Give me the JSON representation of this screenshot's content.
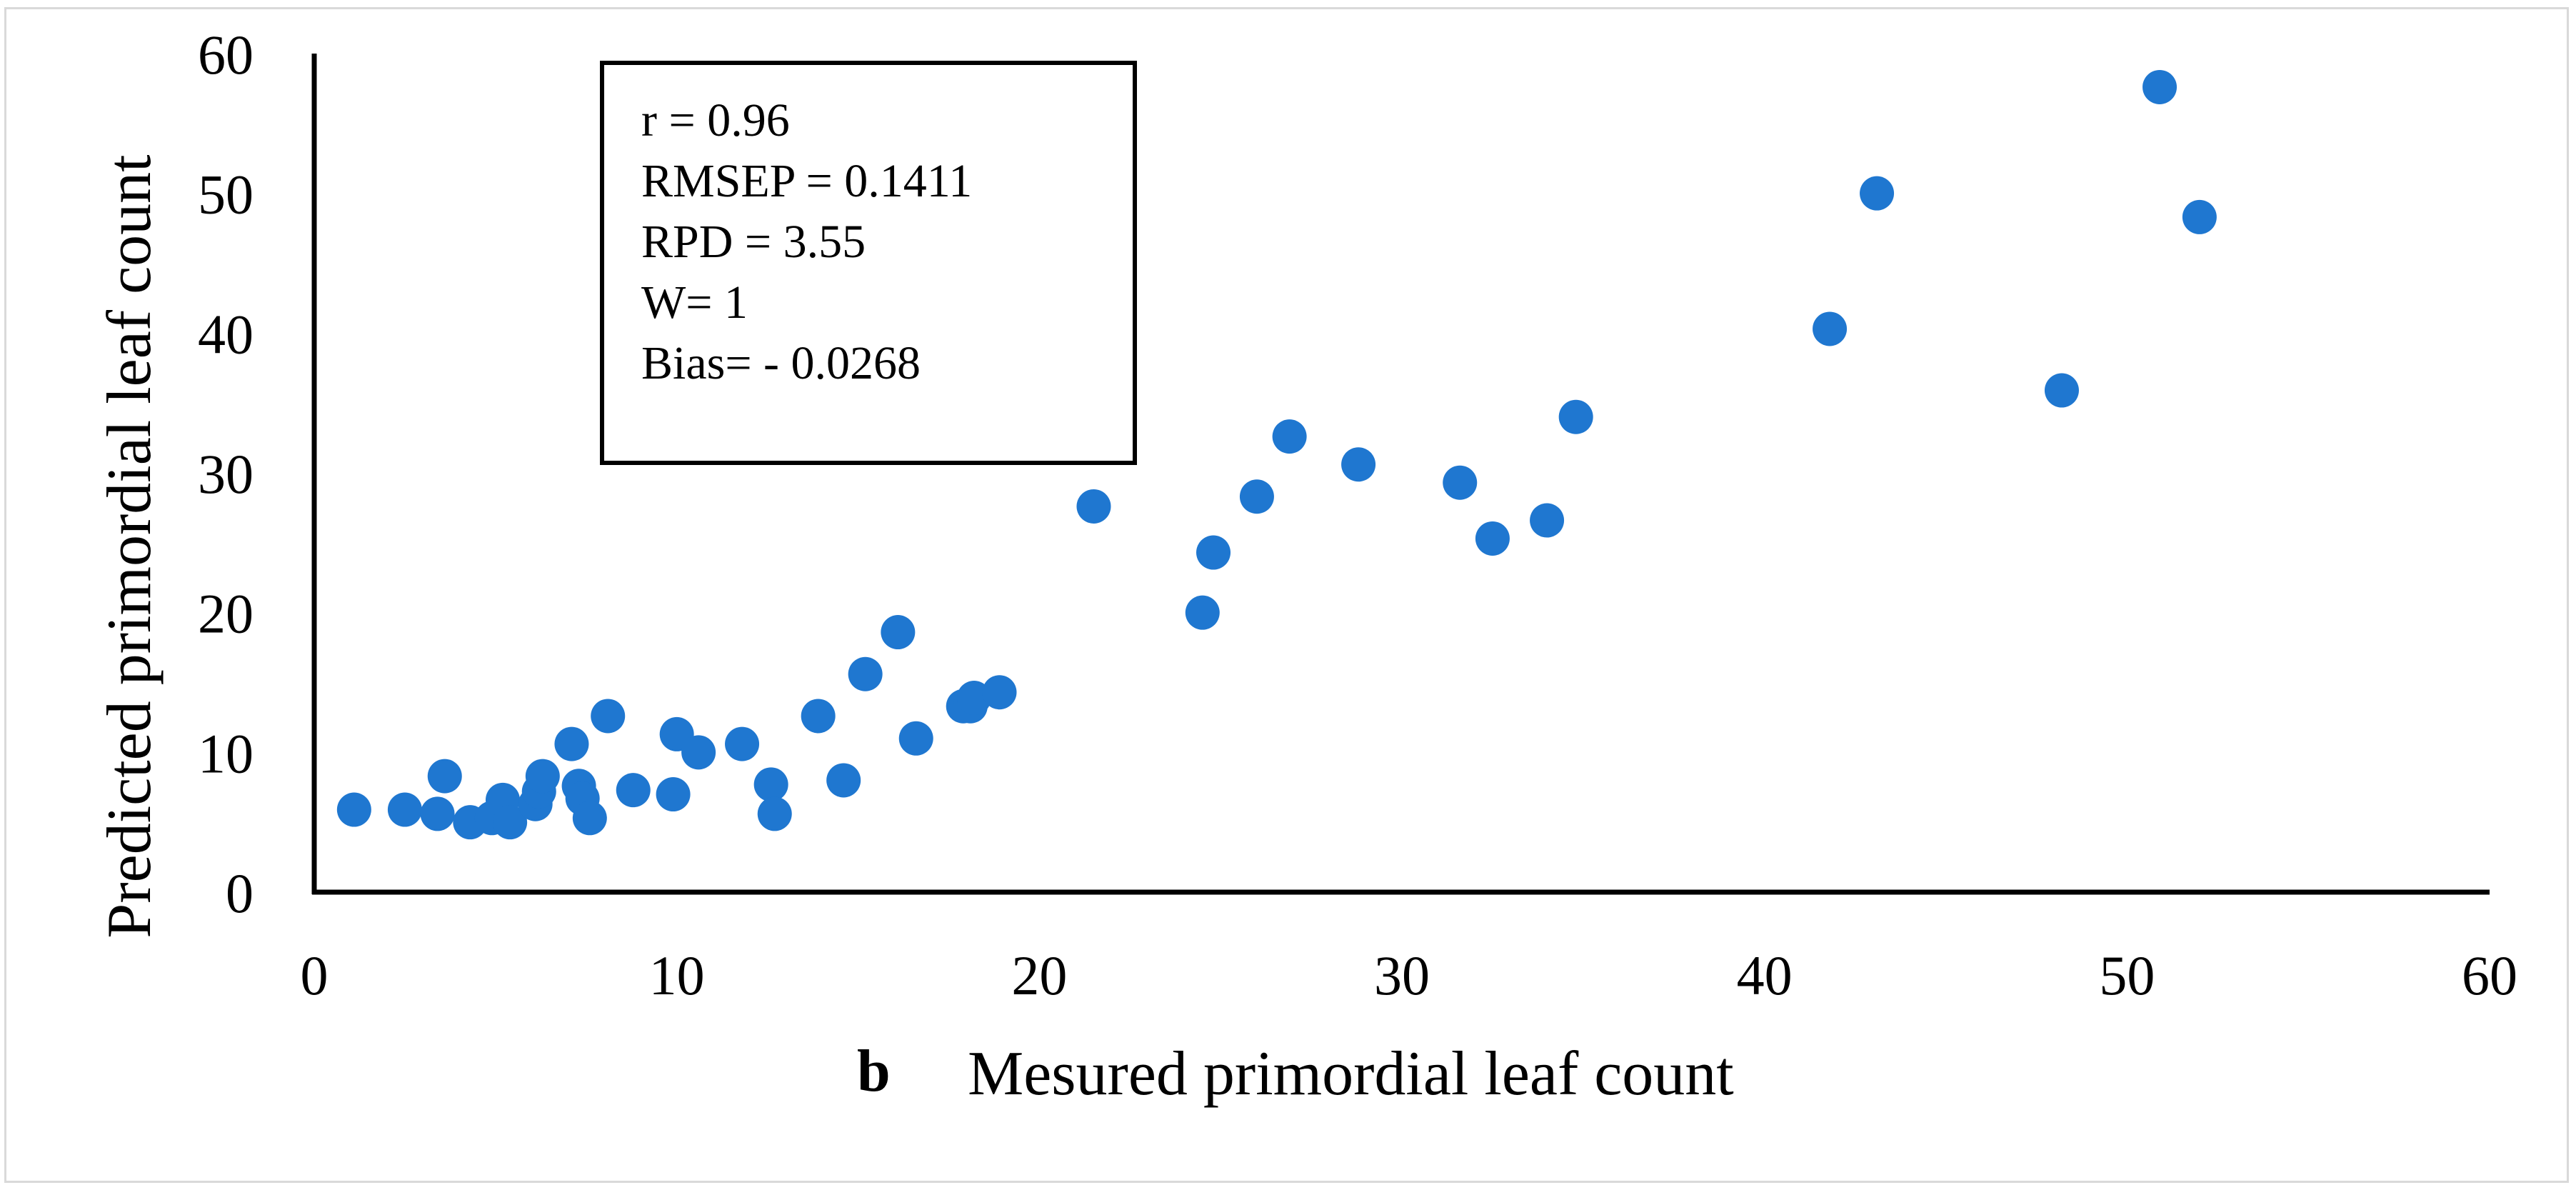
{
  "chart_data": {
    "type": "scatter",
    "panel_label": "b",
    "xlabel": "Mesured primordial leaf count",
    "ylabel": "Predicted primordial leaf count",
    "xlim": [
      0,
      60
    ],
    "ylim": [
      0,
      60
    ],
    "xticks": [
      "0",
      "10",
      "20",
      "30",
      "40",
      "50",
      "60"
    ],
    "yticks": [
      "0",
      "10",
      "20",
      "30",
      "40",
      "50",
      "60"
    ],
    "grid": false,
    "stats": [
      "r = 0.96",
      "RMSEP = 0.1411",
      "RPD = 3.55",
      "W= 1",
      "Bias= - 0.0268"
    ],
    "marker_color": "#1f77d0",
    "points": [
      {
        "x": 1.1,
        "y": 5.9
      },
      {
        "x": 2.5,
        "y": 5.9
      },
      {
        "x": 3.4,
        "y": 5.6
      },
      {
        "x": 3.6,
        "y": 8.3
      },
      {
        "x": 4.3,
        "y": 5.0
      },
      {
        "x": 4.9,
        "y": 5.3
      },
      {
        "x": 5.2,
        "y": 6.6
      },
      {
        "x": 5.4,
        "y": 5.0
      },
      {
        "x": 6.1,
        "y": 6.3
      },
      {
        "x": 6.2,
        "y": 7.2
      },
      {
        "x": 6.3,
        "y": 8.3
      },
      {
        "x": 7.1,
        "y": 10.6
      },
      {
        "x": 7.3,
        "y": 7.6
      },
      {
        "x": 7.4,
        "y": 6.7
      },
      {
        "x": 7.6,
        "y": 5.3
      },
      {
        "x": 8.1,
        "y": 12.6
      },
      {
        "x": 8.8,
        "y": 7.3
      },
      {
        "x": 9.9,
        "y": 7.0
      },
      {
        "x": 10.0,
        "y": 11.3
      },
      {
        "x": 10.6,
        "y": 10.0
      },
      {
        "x": 11.8,
        "y": 10.6
      },
      {
        "x": 12.6,
        "y": 7.7
      },
      {
        "x": 12.7,
        "y": 5.6
      },
      {
        "x": 13.9,
        "y": 12.6
      },
      {
        "x": 14.6,
        "y": 8.0
      },
      {
        "x": 15.2,
        "y": 15.6
      },
      {
        "x": 16.1,
        "y": 18.6
      },
      {
        "x": 16.6,
        "y": 11.0
      },
      {
        "x": 17.9,
        "y": 13.3
      },
      {
        "x": 18.1,
        "y": 13.3
      },
      {
        "x": 18.2,
        "y": 13.9
      },
      {
        "x": 18.9,
        "y": 14.3
      },
      {
        "x": 21.5,
        "y": 27.6
      },
      {
        "x": 24.5,
        "y": 20.0
      },
      {
        "x": 24.8,
        "y": 24.3
      },
      {
        "x": 26.0,
        "y": 28.3
      },
      {
        "x": 26.9,
        "y": 32.6
      },
      {
        "x": 28.8,
        "y": 30.6
      },
      {
        "x": 31.6,
        "y": 29.3
      },
      {
        "x": 32.5,
        "y": 25.3
      },
      {
        "x": 34.0,
        "y": 26.6
      },
      {
        "x": 34.8,
        "y": 34.0
      },
      {
        "x": 41.8,
        "y": 40.3
      },
      {
        "x": 43.1,
        "y": 50.0
      },
      {
        "x": 48.2,
        "y": 35.9
      },
      {
        "x": 50.9,
        "y": 57.6
      },
      {
        "x": 52.0,
        "y": 48.3
      }
    ]
  }
}
